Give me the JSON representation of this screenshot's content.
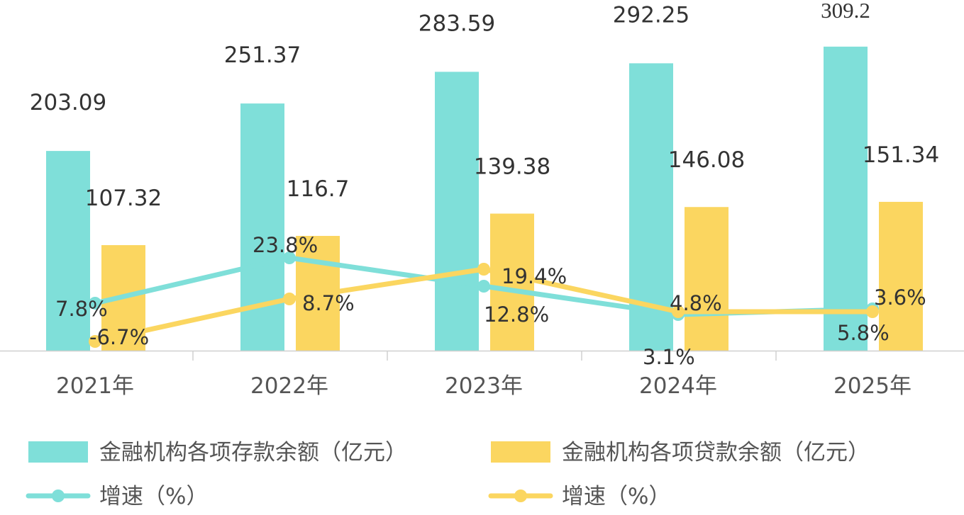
{
  "chart_data": {
    "type": "bar",
    "categories": [
      "2021年",
      "2022年",
      "2023年",
      "2024年",
      "2025年"
    ],
    "series": [
      {
        "name": "金融机构各项存款余额（亿元）",
        "type": "bar",
        "color": "#7FDFD9",
        "values": [
          203.09,
          251.37,
          283.59,
          292.25,
          309.2
        ],
        "labels": [
          "203.09",
          "251.37",
          "283.59",
          "292.25",
          "309.2"
        ]
      },
      {
        "name": "金融机构各项贷款余额（亿元）",
        "type": "bar",
        "color": "#FBD660",
        "values": [
          107.32,
          116.7,
          139.38,
          146.08,
          151.34
        ],
        "labels": [
          "107.32",
          "116.7",
          "139.38",
          "146.08",
          "151.34"
        ]
      },
      {
        "name": "增速（%）",
        "type": "line",
        "color": "#7FDFD9",
        "values": [
          7.8,
          23.8,
          12.8,
          3.1,
          5.8
        ],
        "labels": [
          "7.8%",
          "23.8%",
          "12.8%",
          "3.1%",
          "5.8%"
        ]
      },
      {
        "name": "增速（%）",
        "type": "line",
        "color": "#FBD660",
        "values": [
          -6.7,
          8.7,
          19.4,
          4.8,
          3.6
        ],
        "labels": [
          "-6.7%",
          "8.7%",
          "19.4%",
          "4.8%",
          "3.6%"
        ]
      }
    ],
    "bar_axis_range": [
      0,
      350
    ],
    "line_axis_range": [
      -8,
      80
    ],
    "grid": false,
    "legend_position": "bottom"
  }
}
